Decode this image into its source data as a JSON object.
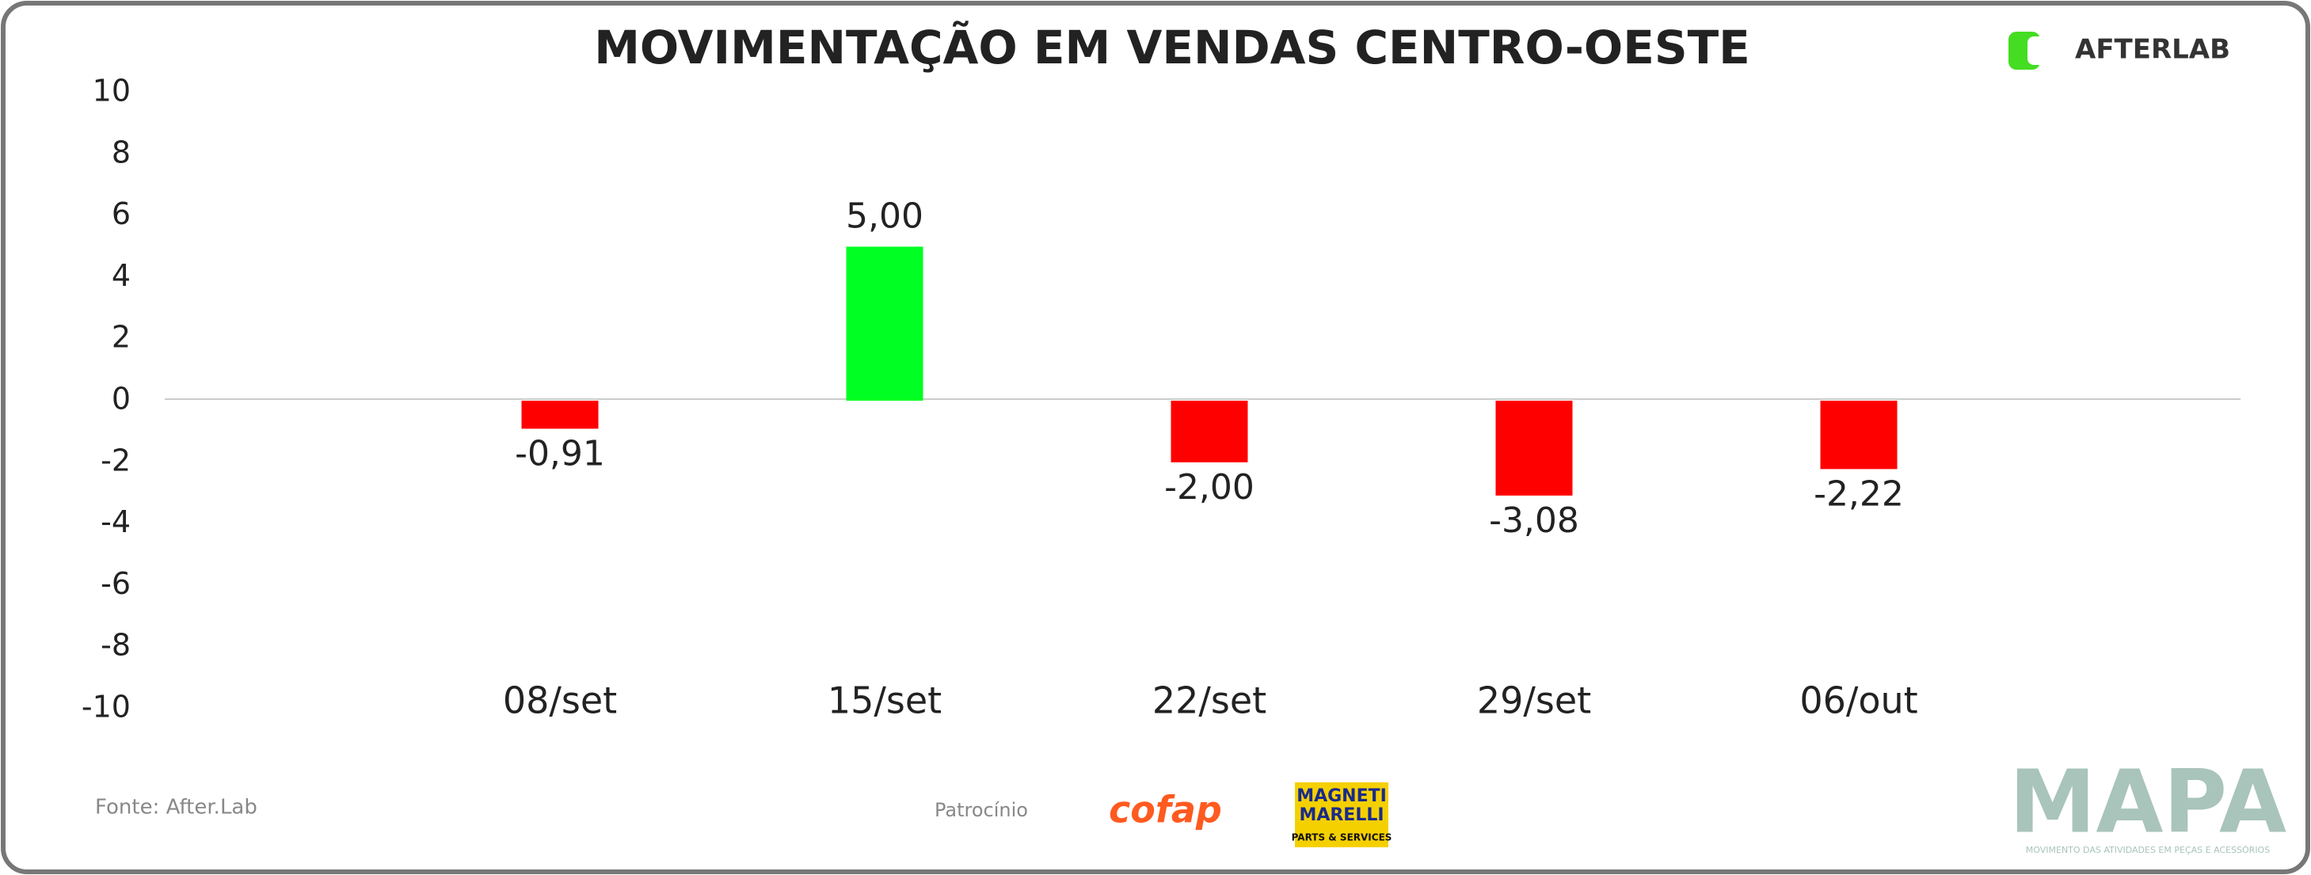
{
  "chart_data": {
    "type": "bar",
    "title": "MOVIMENTAÇÃO EM VENDAS CENTRO-OESTE",
    "categories": [
      "08/set",
      "15/set",
      "22/set",
      "29/set",
      "06/out"
    ],
    "values": [
      -0.91,
      5.0,
      -2.0,
      -3.08,
      -2.22
    ],
    "value_labels": [
      "-0,91",
      "5,00",
      "-2,00",
      "-3,08",
      "-2,22"
    ],
    "colors": [
      "#ff0000",
      "#00ff22",
      "#ff0000",
      "#ff0000",
      "#ff0000"
    ],
    "ylim": [
      -10,
      10
    ],
    "yticks": [
      -10,
      -8,
      -6,
      -4,
      -2,
      0,
      2,
      4,
      6,
      8,
      10
    ],
    "grid": false
  },
  "branding": {
    "logo": "AFTERLAB",
    "source": "Fonte: After.Lab",
    "sponsor_label": "Patrocínio",
    "sponsor_1": "cofap",
    "sponsor_2_line_1": "MAGNETI",
    "sponsor_2_line_2": "MARELLI",
    "sponsor_2_line_3": "PARTS & SERVICES",
    "mapa": "MAPA",
    "mapa_tagline": "MOVIMENTO DAS ATIVIDADES EM PEÇAS E ACESSÓRIOS"
  }
}
